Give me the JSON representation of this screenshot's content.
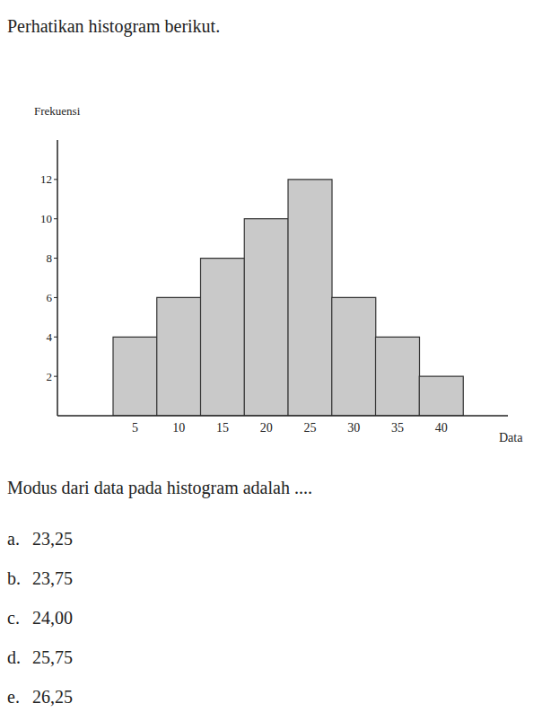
{
  "intro": "Perhatikan histogram berikut.",
  "chart_data": {
    "type": "bar",
    "categories": [
      5,
      10,
      15,
      20,
      25,
      30,
      35,
      40
    ],
    "values": [
      4,
      6,
      8,
      10,
      12,
      6,
      4,
      2
    ],
    "color": "#c9c9c9",
    "x_label": "Data",
    "y_label": "Frekuensi",
    "ylim": [
      0,
      14
    ],
    "yticks": [
      2,
      4,
      6,
      8,
      10,
      12
    ]
  },
  "question": "Modus dari data pada histogram adalah ....",
  "options": [
    {
      "label": "a.",
      "text": "23,25"
    },
    {
      "label": "b.",
      "text": "23,75"
    },
    {
      "label": "c.",
      "text": "24,00"
    },
    {
      "label": "d.",
      "text": "25,75"
    },
    {
      "label": "e.",
      "text": "26,25"
    }
  ]
}
